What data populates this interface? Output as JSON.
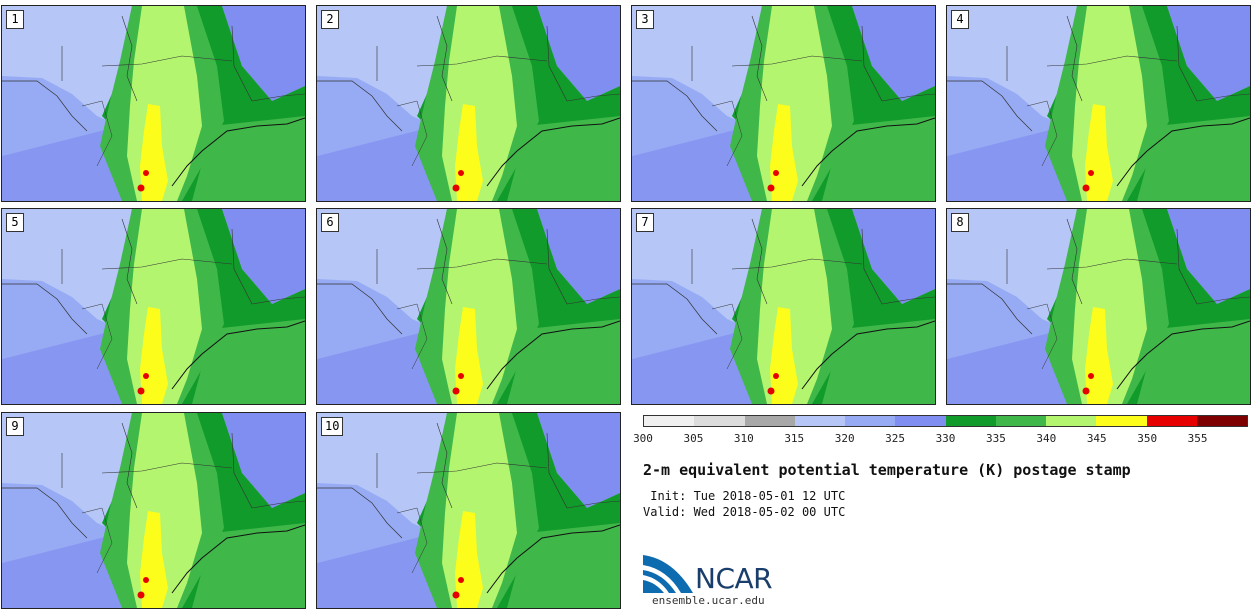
{
  "panels": [
    {
      "label": "1"
    },
    {
      "label": "2"
    },
    {
      "label": "3"
    },
    {
      "label": "4"
    },
    {
      "label": "5"
    },
    {
      "label": "6"
    },
    {
      "label": "7"
    },
    {
      "label": "8"
    },
    {
      "label": "9"
    },
    {
      "label": "10"
    }
  ],
  "colorbar": {
    "colors": [
      "#f0f0f0",
      "#dcdcdc",
      "#a8a8a8",
      "#b5c6f7",
      "#97abf5",
      "#7f8ef0",
      "#119b2a",
      "#3fb749",
      "#b3f56f",
      "#fdfd1b",
      "#e60000",
      "#7f0000"
    ],
    "ticks": [
      "300",
      "305",
      "310",
      "315",
      "320",
      "325",
      "330",
      "335",
      "340",
      "345",
      "350",
      "355"
    ]
  },
  "map_colors": {
    "k315": "#b5c6f7",
    "k320": "#97abf5",
    "k325": "#7f8ef0",
    "k330": "#119b2a",
    "k335": "#3fb749",
    "k340": "#b3f56f",
    "k345": "#fdfd1b",
    "k350": "#e60000"
  },
  "title": "2-m equivalent potential temperature (K) postage stamp",
  "init": " Init: Tue 2018-05-01 12 UTC",
  "valid": "Valid: Wed 2018-05-02 00 UTC",
  "logo": {
    "text": "NCAR",
    "url": "ensemble.ucar.edu"
  }
}
